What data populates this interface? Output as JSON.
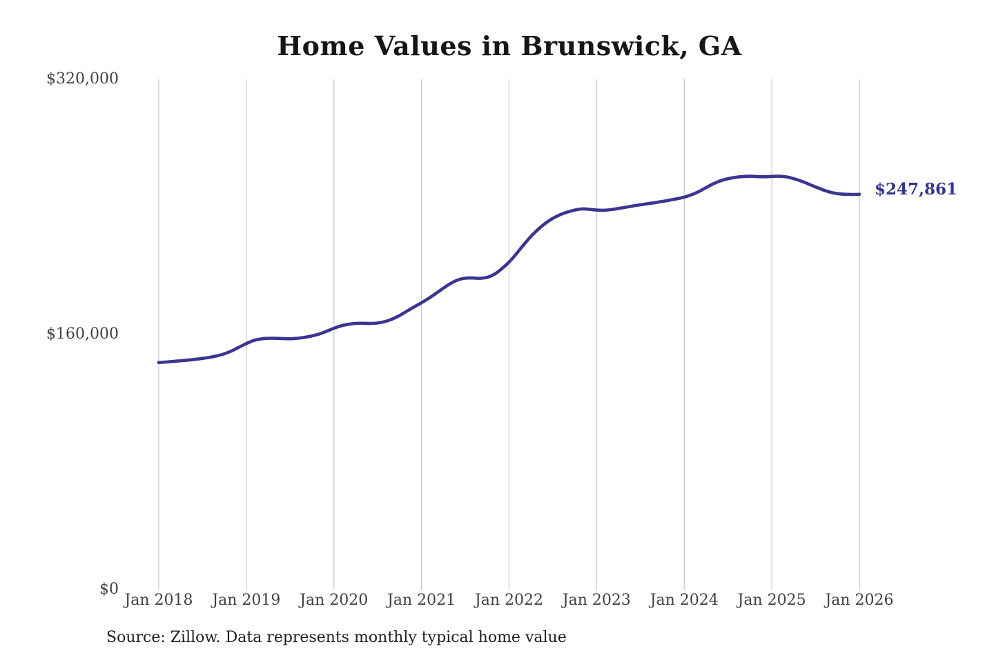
{
  "title": "Home Values in Brunswick, GA",
  "source_note": "Source: Zillow. Data represents monthly typical home value",
  "colors": {
    "background": "#ffffff",
    "line": "#3b3590",
    "end_label": "#333390",
    "gridline": "#cccccc",
    "title": "#161616",
    "axis_label": "#414141",
    "source_note": "#1f1f1f"
  },
  "chart_data": {
    "type": "line",
    "title": "Home Values in Brunswick, GA",
    "xlabel": "",
    "ylabel": "",
    "x_unit": "month",
    "x_range": [
      "Jan 2018",
      "Jan 2026"
    ],
    "x_tick_labels": [
      "Jan 2018",
      "Jan 2019",
      "Jan 2020",
      "Jan 2021",
      "Jan 2022",
      "Jan 2023",
      "Jan 2024",
      "Jan 2025",
      "Jan 2026"
    ],
    "y_ticks": [
      0,
      160000,
      320000
    ],
    "y_tick_labels": [
      "$0",
      "$160,000",
      "$320,000"
    ],
    "ylim": [
      0,
      320000
    ],
    "grid": "vertical-only",
    "legend": "none",
    "end_value": 247861,
    "end_value_label": "$247,861",
    "series": [
      {
        "name": "Typical home value",
        "color": "#3b3590",
        "values": [
          142400,
          142700,
          143100,
          143500,
          143900,
          144400,
          145000,
          145700,
          146600,
          147900,
          149700,
          152000,
          154300,
          156200,
          157200,
          157600,
          157600,
          157400,
          157300,
          157600,
          158200,
          159100,
          160300,
          162000,
          163900,
          165400,
          166400,
          166900,
          167000,
          166900,
          167200,
          168100,
          169700,
          171900,
          174600,
          177300,
          179900,
          182700,
          185800,
          189000,
          192000,
          194200,
          195300,
          195400,
          195200,
          195800,
          197800,
          201200,
          205400,
          210600,
          216200,
          221500,
          226000,
          229800,
          232800,
          235100,
          236800,
          238000,
          238700,
          238500,
          238000,
          237900,
          238300,
          239000,
          239800,
          240600,
          241300,
          242000,
          242700,
          243400,
          244200,
          245100,
          246100,
          247600,
          249600,
          252100,
          254500,
          256400,
          257700,
          258500,
          259000,
          259200,
          259000,
          258900,
          259100,
          259200,
          258800,
          257700,
          256200,
          254400,
          252500,
          250700,
          249200,
          248300,
          247900,
          247800,
          247861
        ]
      }
    ]
  }
}
